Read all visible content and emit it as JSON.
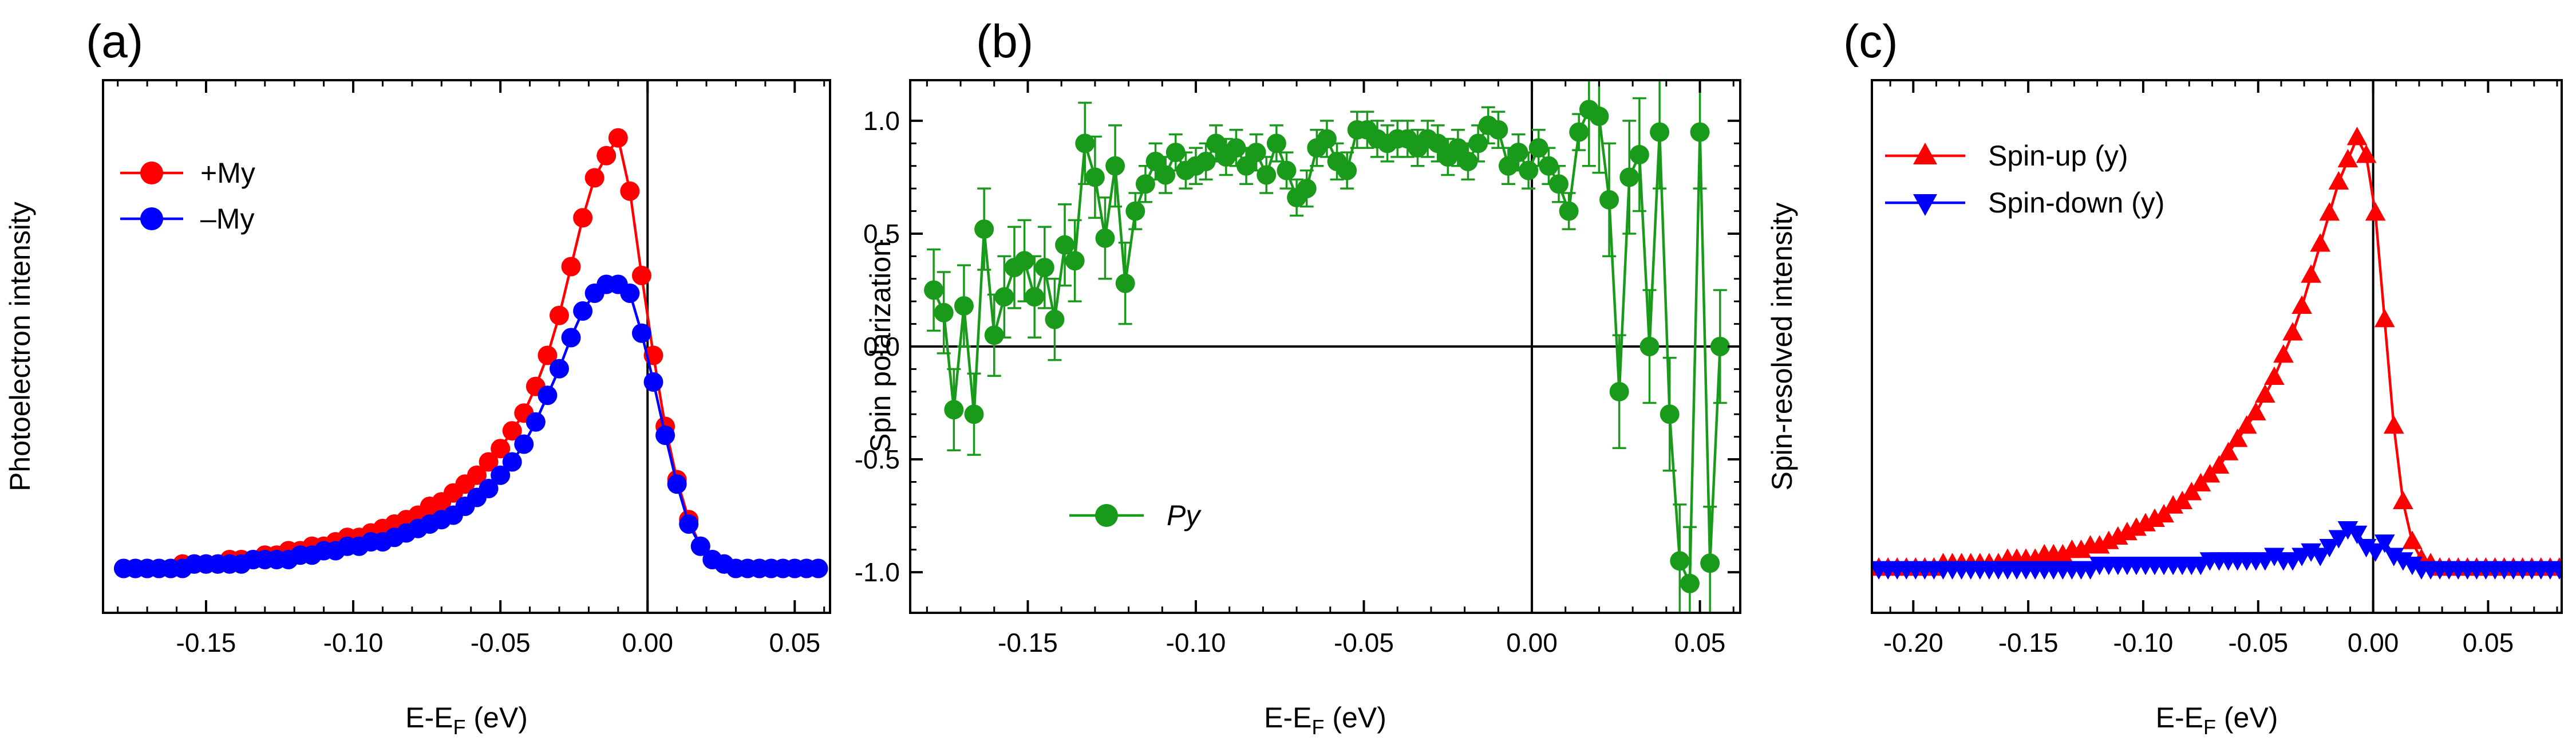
{
  "chart_data": [
    {
      "panel_label": "(a)",
      "type": "line",
      "title": "",
      "xlabel": {
        "main": "E-E",
        "sub": "F",
        "suffix": " (eV)"
      },
      "ylabel": "Photoelectron intensity",
      "xlim": [
        -0.185,
        0.062
      ],
      "ylim": [
        -0.1,
        1.1
      ],
      "x_ticks": [
        -0.15,
        -0.1,
        -0.05,
        0.0,
        0.05
      ],
      "x_tick_labels": [
        "-0.15",
        "-0.10",
        "-0.05",
        "0.00",
        "0.05"
      ],
      "y_ticks": [],
      "y_tick_labels": [],
      "vline": 0,
      "hline": null,
      "legend_position": "top-left",
      "series": [
        {
          "name": "+My",
          "color": "#ff0000",
          "marker": "circle",
          "x": [
            -0.178,
            -0.174,
            -0.17,
            -0.166,
            -0.162,
            -0.158,
            -0.154,
            -0.15,
            -0.146,
            -0.142,
            -0.138,
            -0.134,
            -0.13,
            -0.126,
            -0.122,
            -0.118,
            -0.114,
            -0.11,
            -0.106,
            -0.102,
            -0.098,
            -0.094,
            -0.09,
            -0.086,
            -0.082,
            -0.078,
            -0.074,
            -0.07,
            -0.066,
            -0.062,
            -0.058,
            -0.054,
            -0.05,
            -0.046,
            -0.042,
            -0.038,
            -0.034,
            -0.03,
            -0.026,
            -0.022,
            -0.018,
            -0.014,
            -0.01,
            -0.006,
            -0.002,
            0.002,
            0.006,
            0.01,
            0.014,
            0.018,
            0.022,
            0.026,
            0.03,
            0.034,
            0.038,
            0.042,
            0.046,
            0.05,
            0.054,
            0.058
          ],
          "y": [
            0.0,
            0.0,
            0.0,
            0.0,
            0.0,
            0.01,
            0.01,
            0.01,
            0.01,
            0.02,
            0.02,
            0.02,
            0.03,
            0.03,
            0.04,
            0.04,
            0.05,
            0.05,
            0.06,
            0.07,
            0.07,
            0.08,
            0.09,
            0.1,
            0.11,
            0.12,
            0.14,
            0.15,
            0.17,
            0.19,
            0.21,
            0.24,
            0.27,
            0.31,
            0.35,
            0.41,
            0.48,
            0.57,
            0.68,
            0.79,
            0.88,
            0.93,
            0.97,
            0.85,
            0.66,
            0.48,
            0.32,
            0.2,
            0.11,
            0.05,
            0.02,
            0.01,
            0.0,
            0.0,
            0.0,
            0.0,
            0.0,
            0.0,
            0.0,
            0.0
          ]
        },
        {
          "name": "–My",
          "color": "#0000ff",
          "marker": "circle",
          "x": [
            -0.178,
            -0.174,
            -0.17,
            -0.166,
            -0.162,
            -0.158,
            -0.154,
            -0.15,
            -0.146,
            -0.142,
            -0.138,
            -0.134,
            -0.13,
            -0.126,
            -0.122,
            -0.118,
            -0.114,
            -0.11,
            -0.106,
            -0.102,
            -0.098,
            -0.094,
            -0.09,
            -0.086,
            -0.082,
            -0.078,
            -0.074,
            -0.07,
            -0.066,
            -0.062,
            -0.058,
            -0.054,
            -0.05,
            -0.046,
            -0.042,
            -0.038,
            -0.034,
            -0.03,
            -0.026,
            -0.022,
            -0.018,
            -0.014,
            -0.01,
            -0.006,
            -0.002,
            0.002,
            0.006,
            0.01,
            0.014,
            0.018,
            0.022,
            0.026,
            0.03,
            0.034,
            0.038,
            0.042,
            0.046,
            0.05,
            0.054,
            0.058
          ],
          "y": [
            0.0,
            0.0,
            0.0,
            0.0,
            0.0,
            0.0,
            0.01,
            0.01,
            0.01,
            0.01,
            0.01,
            0.02,
            0.02,
            0.02,
            0.02,
            0.03,
            0.03,
            0.04,
            0.04,
            0.05,
            0.05,
            0.06,
            0.06,
            0.07,
            0.08,
            0.09,
            0.1,
            0.11,
            0.12,
            0.14,
            0.16,
            0.18,
            0.21,
            0.24,
            0.28,
            0.33,
            0.39,
            0.45,
            0.52,
            0.58,
            0.62,
            0.64,
            0.64,
            0.62,
            0.53,
            0.42,
            0.3,
            0.19,
            0.1,
            0.05,
            0.02,
            0.01,
            0.0,
            0.0,
            0.0,
            0.0,
            0.0,
            0.0,
            0.0,
            0.0
          ]
        }
      ]
    },
    {
      "panel_label": "(b)",
      "type": "line",
      "title": "",
      "xlabel": {
        "main": "E-E",
        "sub": "F",
        "suffix": " (eV)"
      },
      "ylabel": "Spin polarization",
      "xlim": [
        -0.185,
        0.062
      ],
      "ylim": [
        -1.18,
        1.18
      ],
      "x_ticks": [
        -0.15,
        -0.1,
        -0.05,
        0.0,
        0.05
      ],
      "x_tick_labels": [
        "-0.15",
        "-0.10",
        "-0.05",
        "0.00",
        "0.05"
      ],
      "y_ticks": [
        1.0,
        0.5,
        0.0,
        -0.5,
        -1.0
      ],
      "y_tick_labels": [
        "1.0",
        "0.5",
        "0.0",
        "-0.5",
        "-1.0"
      ],
      "vline": 0,
      "hline": 0,
      "legend_position": "bottom-left",
      "series": [
        {
          "name": "Py",
          "color": "#1a9a1a",
          "marker": "circle",
          "x": [
            -0.178,
            -0.175,
            -0.172,
            -0.169,
            -0.166,
            -0.163,
            -0.16,
            -0.157,
            -0.154,
            -0.151,
            -0.148,
            -0.145,
            -0.142,
            -0.139,
            -0.136,
            -0.133,
            -0.13,
            -0.127,
            -0.124,
            -0.121,
            -0.118,
            -0.115,
            -0.112,
            -0.109,
            -0.106,
            -0.103,
            -0.1,
            -0.097,
            -0.094,
            -0.091,
            -0.088,
            -0.085,
            -0.082,
            -0.079,
            -0.076,
            -0.073,
            -0.07,
            -0.067,
            -0.064,
            -0.061,
            -0.058,
            -0.055,
            -0.052,
            -0.049,
            -0.046,
            -0.043,
            -0.04,
            -0.037,
            -0.034,
            -0.031,
            -0.028,
            -0.025,
            -0.022,
            -0.019,
            -0.016,
            -0.013,
            -0.01,
            -0.007,
            -0.004,
            -0.001,
            0.002,
            0.005,
            0.008,
            0.011,
            0.014,
            0.017,
            0.02,
            0.023,
            0.026,
            0.029,
            0.032,
            0.035,
            0.038,
            0.041,
            0.044,
            0.047,
            0.05,
            0.053,
            0.056
          ],
          "y": [
            0.25,
            0.15,
            -0.28,
            0.18,
            -0.3,
            0.52,
            0.05,
            0.22,
            0.35,
            0.38,
            0.22,
            0.35,
            0.12,
            0.45,
            0.38,
            0.9,
            0.75,
            0.48,
            0.8,
            0.28,
            0.6,
            0.72,
            0.82,
            0.76,
            0.86,
            0.78,
            0.8,
            0.82,
            0.9,
            0.84,
            0.88,
            0.8,
            0.86,
            0.76,
            0.9,
            0.78,
            0.66,
            0.7,
            0.88,
            0.92,
            0.82,
            0.78,
            0.96,
            0.96,
            0.92,
            0.9,
            0.92,
            0.92,
            0.88,
            0.92,
            0.9,
            0.84,
            0.88,
            0.82,
            0.9,
            0.98,
            0.96,
            0.8,
            0.86,
            0.78,
            0.88,
            0.8,
            0.72,
            0.6,
            0.95,
            1.05,
            1.02,
            0.65,
            -0.2,
            0.75,
            0.85,
            0.0,
            0.95,
            -0.3,
            -0.95,
            -1.05,
            0.95,
            -0.96,
            0.0
          ]
        }
      ]
    },
    {
      "panel_label": "(c)",
      "type": "line",
      "title": "",
      "xlabel": {
        "main": "E-E",
        "sub": "F",
        "suffix": " (eV)"
      },
      "ylabel": "Spin-resolved intensity",
      "xlim": [
        -0.218,
        0.082
      ],
      "ylim": [
        -0.1,
        1.1
      ],
      "x_ticks": [
        -0.2,
        -0.15,
        -0.1,
        -0.05,
        0.0,
        0.05
      ],
      "x_tick_labels": [
        "-0.20",
        "-0.15",
        "-0.10",
        "-0.05",
        "0.00",
        "0.05"
      ],
      "y_ticks": [],
      "y_tick_labels": [],
      "vline": 0,
      "hline": null,
      "legend_position": "top-left",
      "series": [
        {
          "name": "Spin-up (y)",
          "color": "#ff0000",
          "marker": "triangle-up",
          "x": [
            -0.215,
            -0.211,
            -0.207,
            -0.203,
            -0.199,
            -0.195,
            -0.191,
            -0.187,
            -0.183,
            -0.179,
            -0.175,
            -0.171,
            -0.167,
            -0.163,
            -0.159,
            -0.155,
            -0.151,
            -0.147,
            -0.143,
            -0.139,
            -0.135,
            -0.131,
            -0.127,
            -0.123,
            -0.119,
            -0.115,
            -0.111,
            -0.107,
            -0.103,
            -0.099,
            -0.095,
            -0.091,
            -0.087,
            -0.083,
            -0.079,
            -0.075,
            -0.071,
            -0.067,
            -0.063,
            -0.059,
            -0.055,
            -0.051,
            -0.047,
            -0.043,
            -0.039,
            -0.035,
            -0.031,
            -0.027,
            -0.023,
            -0.019,
            -0.015,
            -0.011,
            -0.007,
            -0.003,
            0.001,
            0.005,
            0.009,
            0.013,
            0.017,
            0.021,
            0.025,
            0.029,
            0.033,
            0.037,
            0.041,
            0.045,
            0.049,
            0.053,
            0.057,
            0.061,
            0.065,
            0.069,
            0.073,
            0.077,
            0.081
          ],
          "y": [
            0.0,
            0.0,
            0.0,
            0.0,
            0.0,
            0.0,
            0.0,
            0.01,
            0.01,
            0.01,
            0.01,
            0.01,
            0.01,
            0.01,
            0.02,
            0.02,
            0.02,
            0.02,
            0.03,
            0.03,
            0.03,
            0.04,
            0.04,
            0.05,
            0.05,
            0.06,
            0.07,
            0.08,
            0.09,
            0.1,
            0.11,
            0.12,
            0.14,
            0.15,
            0.17,
            0.19,
            0.21,
            0.23,
            0.26,
            0.29,
            0.32,
            0.35,
            0.39,
            0.43,
            0.48,
            0.53,
            0.59,
            0.66,
            0.73,
            0.8,
            0.87,
            0.92,
            0.97,
            0.93,
            0.8,
            0.56,
            0.32,
            0.15,
            0.06,
            0.02,
            0.01,
            0.0,
            0.0,
            0.0,
            0.0,
            0.0,
            0.0,
            0.0,
            0.0,
            0.0,
            0.0,
            0.0,
            0.0,
            0.0,
            0.0
          ]
        },
        {
          "name": "Spin-down (y)",
          "color": "#0000ff",
          "marker": "triangle-down",
          "x": [
            -0.215,
            -0.211,
            -0.207,
            -0.203,
            -0.199,
            -0.195,
            -0.191,
            -0.187,
            -0.183,
            -0.179,
            -0.175,
            -0.171,
            -0.167,
            -0.163,
            -0.159,
            -0.155,
            -0.151,
            -0.147,
            -0.143,
            -0.139,
            -0.135,
            -0.131,
            -0.127,
            -0.123,
            -0.119,
            -0.115,
            -0.111,
            -0.107,
            -0.103,
            -0.099,
            -0.095,
            -0.091,
            -0.087,
            -0.083,
            -0.079,
            -0.075,
            -0.071,
            -0.067,
            -0.063,
            -0.059,
            -0.055,
            -0.051,
            -0.047,
            -0.043,
            -0.039,
            -0.035,
            -0.031,
            -0.027,
            -0.023,
            -0.019,
            -0.015,
            -0.011,
            -0.007,
            -0.003,
            0.001,
            0.005,
            0.009,
            0.013,
            0.017,
            0.021,
            0.025,
            0.029,
            0.033,
            0.037,
            0.041,
            0.045,
            0.049,
            0.053,
            0.057,
            0.061,
            0.065,
            0.069,
            0.073,
            0.077,
            0.081
          ],
          "y": [
            0.0,
            0.0,
            0.0,
            0.0,
            0.0,
            0.0,
            0.0,
            0.0,
            0.0,
            0.0,
            0.0,
            0.0,
            0.0,
            0.0,
            0.0,
            0.0,
            0.0,
            0.0,
            0.0,
            0.0,
            0.0,
            0.0,
            0.0,
            0.0,
            0.01,
            0.01,
            0.01,
            0.01,
            0.01,
            0.01,
            0.01,
            0.01,
            0.01,
            0.01,
            0.01,
            0.01,
            0.02,
            0.02,
            0.02,
            0.02,
            0.02,
            0.02,
            0.02,
            0.03,
            0.02,
            0.02,
            0.03,
            0.04,
            0.03,
            0.05,
            0.07,
            0.09,
            0.08,
            0.05,
            0.04,
            0.06,
            0.03,
            0.02,
            0.01,
            0.0,
            0.0,
            0.0,
            0.0,
            0.0,
            0.0,
            0.0,
            0.0,
            0.0,
            0.0,
            0.0,
            0.0,
            0.0,
            0.0,
            0.0,
            0.0
          ]
        }
      ]
    }
  ]
}
